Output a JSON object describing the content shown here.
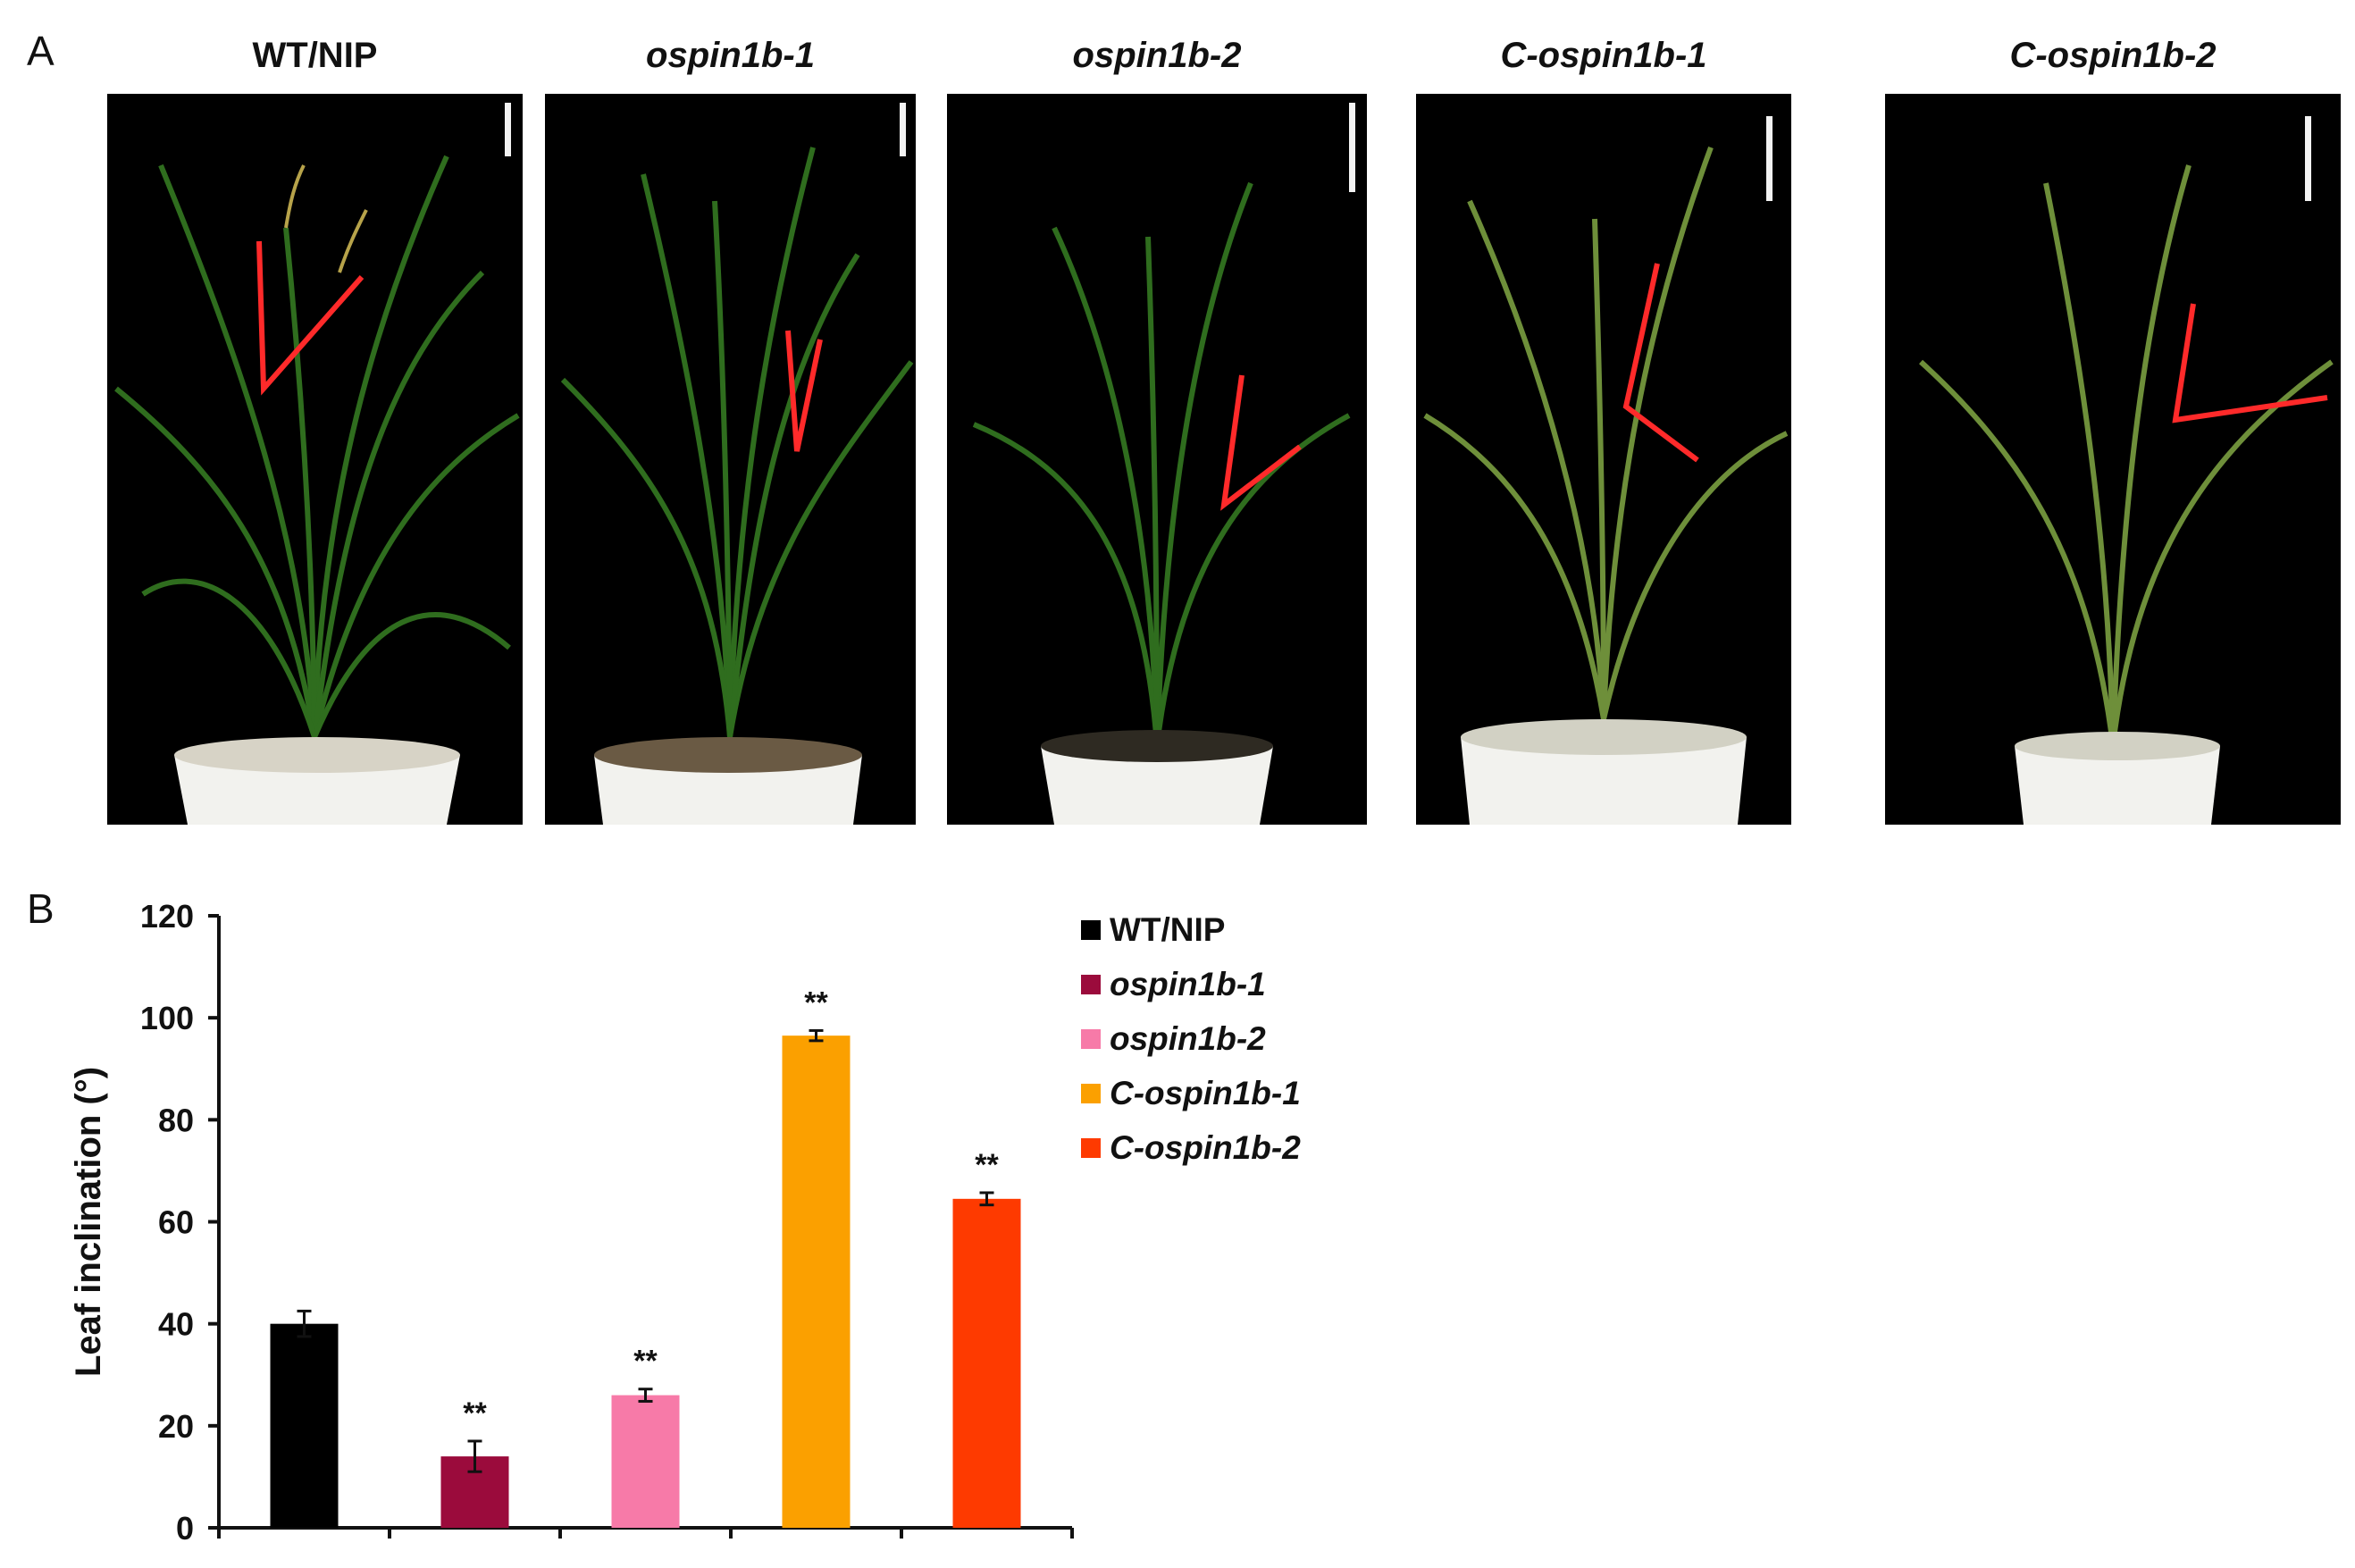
{
  "panels": {
    "a_label": "A",
    "b_label": "B"
  },
  "photos": [
    {
      "title": "WT/NIP",
      "italic": false
    },
    {
      "title": "ospin1b-1",
      "italic": true
    },
    {
      "title": "ospin1b-2",
      "italic": true
    },
    {
      "title": "C-ospin1b-1",
      "italic": true
    },
    {
      "title": "C-ospin1b-2",
      "italic": true
    }
  ],
  "chart_data": {
    "type": "bar",
    "categories": [
      "WT/NIP",
      "ospin1b-1",
      "ospin1b-2",
      "C-ospin1b-1",
      "C-ospin1b-2"
    ],
    "values": [
      40,
      14,
      26,
      96.5,
      64.5
    ],
    "errors": [
      2.5,
      3,
      1.2,
      1,
      1.2
    ],
    "significance": [
      "",
      "**",
      "**",
      "**",
      "**"
    ],
    "colors": [
      "#000000",
      "#9b0b3c",
      "#f77aa8",
      "#fba000",
      "#fe3a00"
    ],
    "ylabel": "Leaf inclination (°)",
    "ylim": [
      0,
      120
    ],
    "yticks": [
      0,
      20,
      40,
      60,
      80,
      100,
      120
    ],
    "legend": [
      "WT/NIP",
      "ospin1b-1",
      "ospin1b-2",
      "C-ospin1b-1",
      "C-ospin1b-2"
    ],
    "legend_position": "right"
  }
}
